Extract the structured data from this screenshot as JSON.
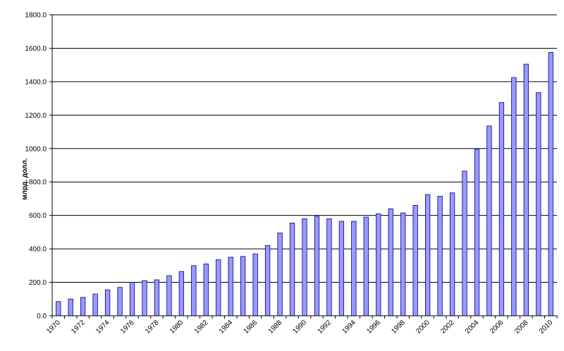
{
  "chart_data": {
    "type": "bar",
    "title": "",
    "xlabel": "",
    "ylabel": "млрд. долл.",
    "ylim": [
      0,
      1800
    ],
    "ytick_step": 200,
    "ytick_labels": [
      "0.0",
      "200.0",
      "400.0",
      "600.0",
      "800.0",
      "1000.0",
      "1200.0",
      "1400.0",
      "1600.0",
      "1800.0"
    ],
    "xtick_labels_every": 2,
    "grid": true,
    "legend": "none",
    "bar_color": "#9999ff",
    "bar_edge_color": "#000080",
    "categories": [
      "1970",
      "1971",
      "1972",
      "1973",
      "1974",
      "1975",
      "1976",
      "1977",
      "1978",
      "1979",
      "1980",
      "1981",
      "1982",
      "1983",
      "1984",
      "1985",
      "1986",
      "1987",
      "1988",
      "1989",
      "1990",
      "1991",
      "1992",
      "1993",
      "1994",
      "1995",
      "1996",
      "1997",
      "1998",
      "1999",
      "2000",
      "2001",
      "2002",
      "2003",
      "2004",
      "2005",
      "2006",
      "2007",
      "2008",
      "2009",
      "2010"
    ],
    "values": [
      85,
      100,
      110,
      130,
      155,
      170,
      200,
      210,
      215,
      240,
      265,
      300,
      310,
      335,
      350,
      355,
      370,
      420,
      495,
      555,
      580,
      595,
      580,
      565,
      565,
      590,
      610,
      640,
      615,
      660,
      725,
      715,
      735,
      865,
      995,
      1135,
      1275,
      1425,
      1505,
      1335,
      1575
    ]
  }
}
